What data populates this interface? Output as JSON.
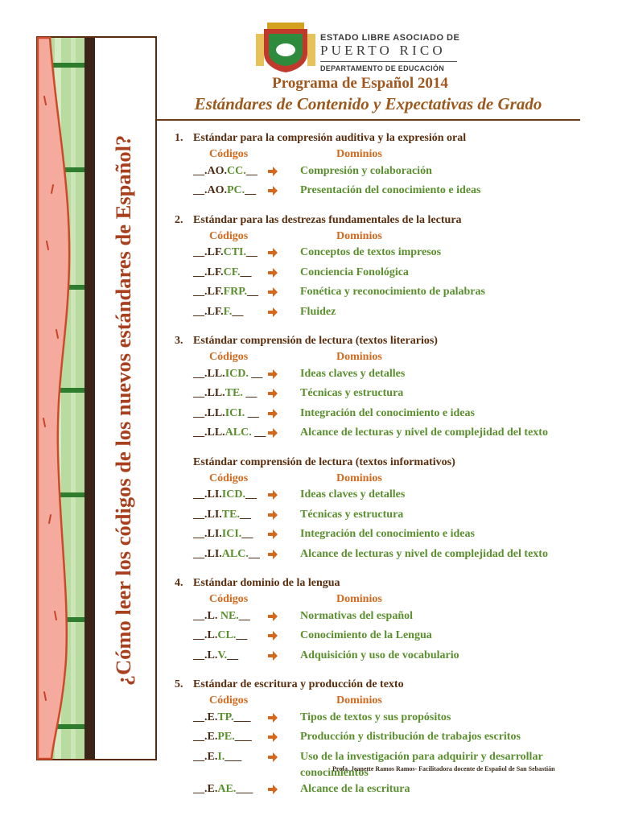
{
  "header": {
    "agency_line1": "ESTADO LIBRE ASOCIADO DE",
    "agency_line2": "PUERTO RICO",
    "department": "DEPARTAMENTO DE EDUCACIÓN",
    "program": "Programa de Español 2014",
    "subtitle": "Estándares de Contenido y Expectativas de Grado"
  },
  "side_title": "¿Cómo leer los códigos de los nuevos estándares de Español?",
  "sections": [
    {
      "number": "1.",
      "title": "Estándar para la compresión auditiva y la expresión oral",
      "codes_label": "Códigos",
      "domains_label": "Dominios",
      "rows": [
        {
          "code": [
            "__.AO.",
            "CC.",
            "__"
          ],
          "domain": "Compresión y colaboración"
        },
        {
          "code": [
            "__.AO.",
            "PC.",
            "__"
          ],
          "domain": "Presentación del conocimiento e ideas"
        }
      ]
    },
    {
      "number": "2.",
      "title": "Estándar para las destrezas fundamentales de la lectura",
      "codes_label": "Códigos",
      "domains_label": "Dominios",
      "rows": [
        {
          "code": [
            "__.LF.",
            "CTI.",
            "__"
          ],
          "domain": "Conceptos de textos impresos"
        },
        {
          "code": [
            "__.LF.",
            "CF.",
            "__"
          ],
          "domain": "Conciencia Fonológica"
        },
        {
          "code": [
            "__.LF.",
            "FRP.",
            "__"
          ],
          "domain": "Fonética y reconocimiento de palabras"
        },
        {
          "code": [
            "__.LF.",
            "F.",
            "__"
          ],
          "domain": "Fluidez"
        }
      ]
    },
    {
      "number": "3.",
      "title": "Estándar comprensión de lectura (textos literarios)",
      "codes_label": "Códigos",
      "domains_label": "Dominios",
      "rows": [
        {
          "code": [
            "__.LL.",
            "ICD.",
            " __"
          ],
          "domain": "Ideas claves y detalles"
        },
        {
          "code": [
            "__.LL.",
            "TE.",
            " __"
          ],
          "domain": "Técnicas y estructura"
        },
        {
          "code": [
            "__.LL.",
            "ICI.",
            " __"
          ],
          "domain": "Integración del conocimiento e ideas"
        },
        {
          "code": [
            "__.LL.",
            "ALC.",
            " __"
          ],
          "domain": "Alcance de lecturas y nivel de complejidad del texto"
        }
      ]
    },
    {
      "title": "Estándar comprensión de lectura (textos informativos)",
      "codes_label": "Códigos",
      "domains_label": "Dominios",
      "rows": [
        {
          "code": [
            "__.LI.",
            "ICD.",
            "__"
          ],
          "domain": "Ideas claves y detalles"
        },
        {
          "code": [
            "__.LI.",
            "TE.",
            "__"
          ],
          "domain": "Técnicas y estructura"
        },
        {
          "code": [
            "__.LI.",
            "ICI.",
            "__"
          ],
          "domain": "Integración del conocimiento e ideas"
        },
        {
          "code": [
            "__.LI.",
            "ALC.",
            "__"
          ],
          "domain": "Alcance de lecturas y nivel de complejidad del texto"
        }
      ]
    },
    {
      "number": "4.",
      "title": "Estándar dominio de la lengua",
      "codes_label": "Códigos",
      "domains_label": "Dominios",
      "rows": [
        {
          "code": [
            "__.L. ",
            "NE.",
            "__"
          ],
          "domain": "Normativas del español"
        },
        {
          "code": [
            "__.L.",
            "CL.",
            "__"
          ],
          "domain": "Conocimiento de la Lengua"
        },
        {
          "code": [
            "__.L.",
            "V.",
            "__"
          ],
          "domain": "Adquisición y uso de vocabulario"
        }
      ]
    },
    {
      "number": "5.",
      "title": "Estándar de escritura y producción de texto",
      "codes_label": "Códigos",
      "domains_label": "Dominios",
      "rows": [
        {
          "code": [
            "__.E.",
            "TP.",
            "___"
          ],
          "domain": "Tipos de textos y sus propósitos"
        },
        {
          "code": [
            "__.E.",
            "PE.",
            "___"
          ],
          "domain": "Producción y distribución de trabajos escritos"
        },
        {
          "code": [
            "__.E.",
            "I.",
            "___"
          ],
          "domain": "Uso de la investigación para adquirir y desarrollar conocimientos"
        },
        {
          "code": [
            "__.E.",
            "AE.",
            "___"
          ],
          "domain": "Alcance de la escritura"
        }
      ]
    }
  ],
  "footer": "Profa. Jeanette Ramos Ramos- Facilitadora docente de Español de San Sebastián"
}
